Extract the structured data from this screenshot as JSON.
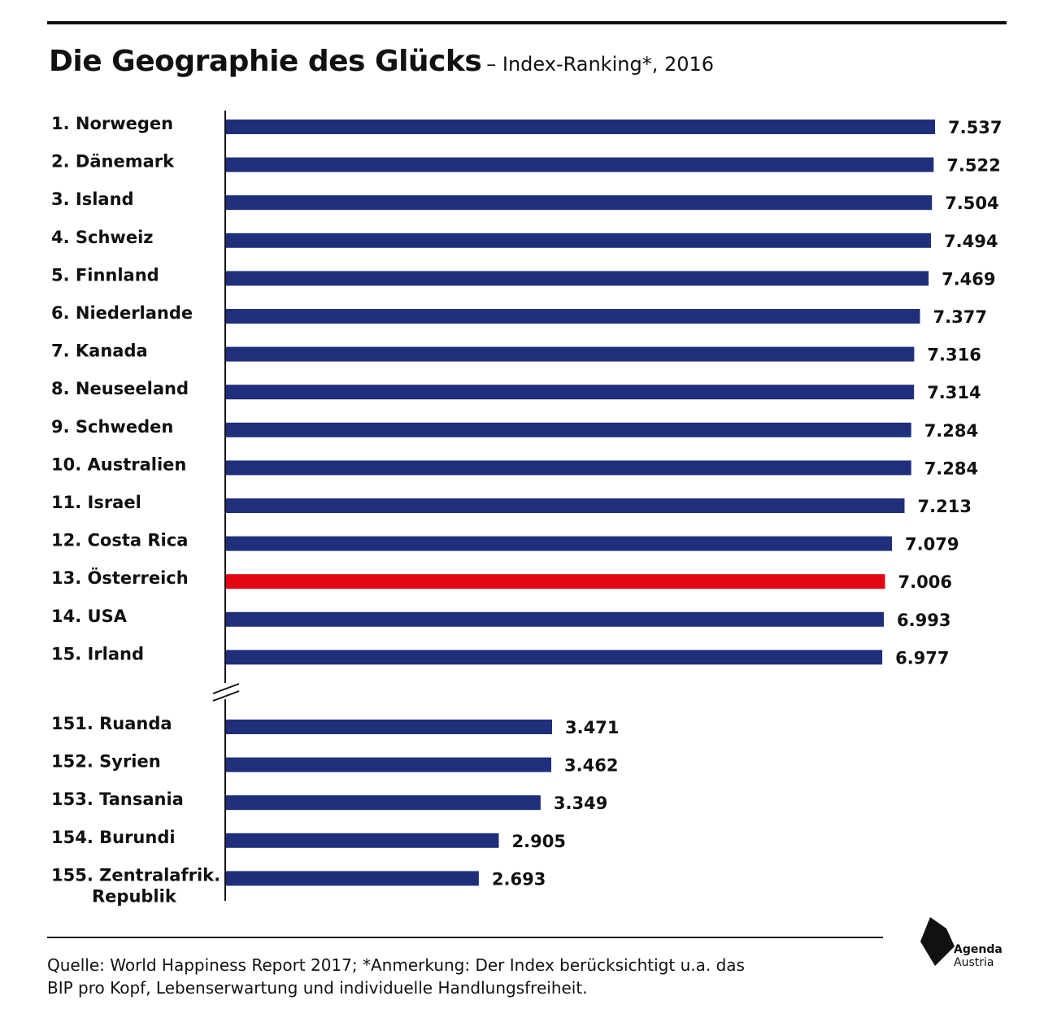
{
  "header": {
    "title": "Die Geographie des Glücks",
    "subtitle": "– Index-Ranking*, 2016"
  },
  "colors": {
    "bar": "#1f2f7c",
    "highlight": "#e30613",
    "text": "#111111"
  },
  "chart_data": {
    "type": "bar",
    "orientation": "horizontal",
    "title": "Die Geographie des Glücks",
    "subtitle": "– Index-Ranking*, 2016",
    "xlim": [
      0,
      7.537
    ],
    "axis_break_after_index": 14,
    "grid": false,
    "categories": [
      "1. Norwegen",
      "2. Dänemark",
      "3. Island",
      "4. Schweiz",
      "5. Finnland",
      "6. Niederlande",
      "7. Kanada",
      "8. Neuseeland",
      "9. Schweden",
      "10. Australien",
      "11. Israel",
      "12. Costa Rica",
      "13. Österreich",
      "14. USA",
      "15. Irland",
      "151. Ruanda",
      "152. Syrien",
      "153. Tansania",
      "154. Burundi",
      "155. Zentralafrik.\nRepublik"
    ],
    "values": [
      7.537,
      7.522,
      7.504,
      7.494,
      7.469,
      7.377,
      7.316,
      7.314,
      7.284,
      7.284,
      7.213,
      7.079,
      7.006,
      6.993,
      6.977,
      3.471,
      3.462,
      3.349,
      2.905,
      2.693
    ],
    "value_labels": [
      "7.537",
      "7.522",
      "7.504",
      "7.494",
      "7.469",
      "7.377",
      "7.316",
      "7.314",
      "7.284",
      "7.284",
      "7.213",
      "7.079",
      "7.006",
      "6.993",
      "6.977",
      "3.471",
      "3.462",
      "3.349",
      "2.905",
      "2.693"
    ],
    "highlight_index": 12
  },
  "footer": {
    "line1": "Quelle: World Happiness Report 2017; *Anmerkung: Der Index berücksichtigt u.a. das",
    "line2": "BIP pro Kopf, Lebenserwartung und individuelle Handlungsfreiheit."
  },
  "logo": {
    "name": "Agenda Austria",
    "line1": "Agenda",
    "line2": "Austria"
  }
}
